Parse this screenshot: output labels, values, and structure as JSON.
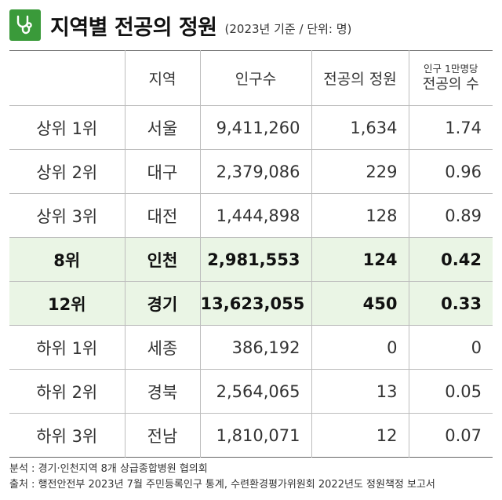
{
  "header": {
    "icon": "stethoscope-icon",
    "accent_color": "#3a9a3a",
    "title": "지역별 전공의 정원",
    "subtitle": "(2023년 기준 / 단위: 명)"
  },
  "table": {
    "columns": {
      "rank": "",
      "region": "지역",
      "population": "인구수",
      "quota": "전공의 정원",
      "per_capita_top": "인구 1만명당",
      "per_capita_bottom": "전공의 수"
    },
    "highlight_color": "#eaf5e5",
    "rows": [
      {
        "rank": "상위 1위",
        "region": "서울",
        "population": "9,411,260",
        "quota": "1,634",
        "per_capita": "1.74"
      },
      {
        "rank": "상위 2위",
        "region": "대구",
        "population": "2,379,086",
        "quota": "229",
        "per_capita": "0.96"
      },
      {
        "rank": "상위 3위",
        "region": "대전",
        "population": "1,444,898",
        "quota": "128",
        "per_capita": "0.89"
      },
      {
        "rank": "8위",
        "region": "인천",
        "population": "2,981,553",
        "quota": "124",
        "per_capita": "0.42"
      },
      {
        "rank": "12위",
        "region": "경기",
        "population": "13,623,055",
        "quota": "450",
        "per_capita": "0.33"
      },
      {
        "rank": "하위 1위",
        "region": "세종",
        "population": "386,192",
        "quota": "0",
        "per_capita": "0"
      },
      {
        "rank": "하위 2위",
        "region": "경북",
        "population": "2,564,065",
        "quota": "13",
        "per_capita": "0.05"
      },
      {
        "rank": "하위 3위",
        "region": "전남",
        "population": "1,810,071",
        "quota": "12",
        "per_capita": "0.07"
      }
    ]
  },
  "footer": {
    "analysis": "분석 : 경기·인천지역 8개 상급종합병원 협의회",
    "source": "출처 : 행전안전부 2023년 7월 주민등록인구 통계, 수련환경평가위원회 2022년도 정원책정 보고서"
  }
}
